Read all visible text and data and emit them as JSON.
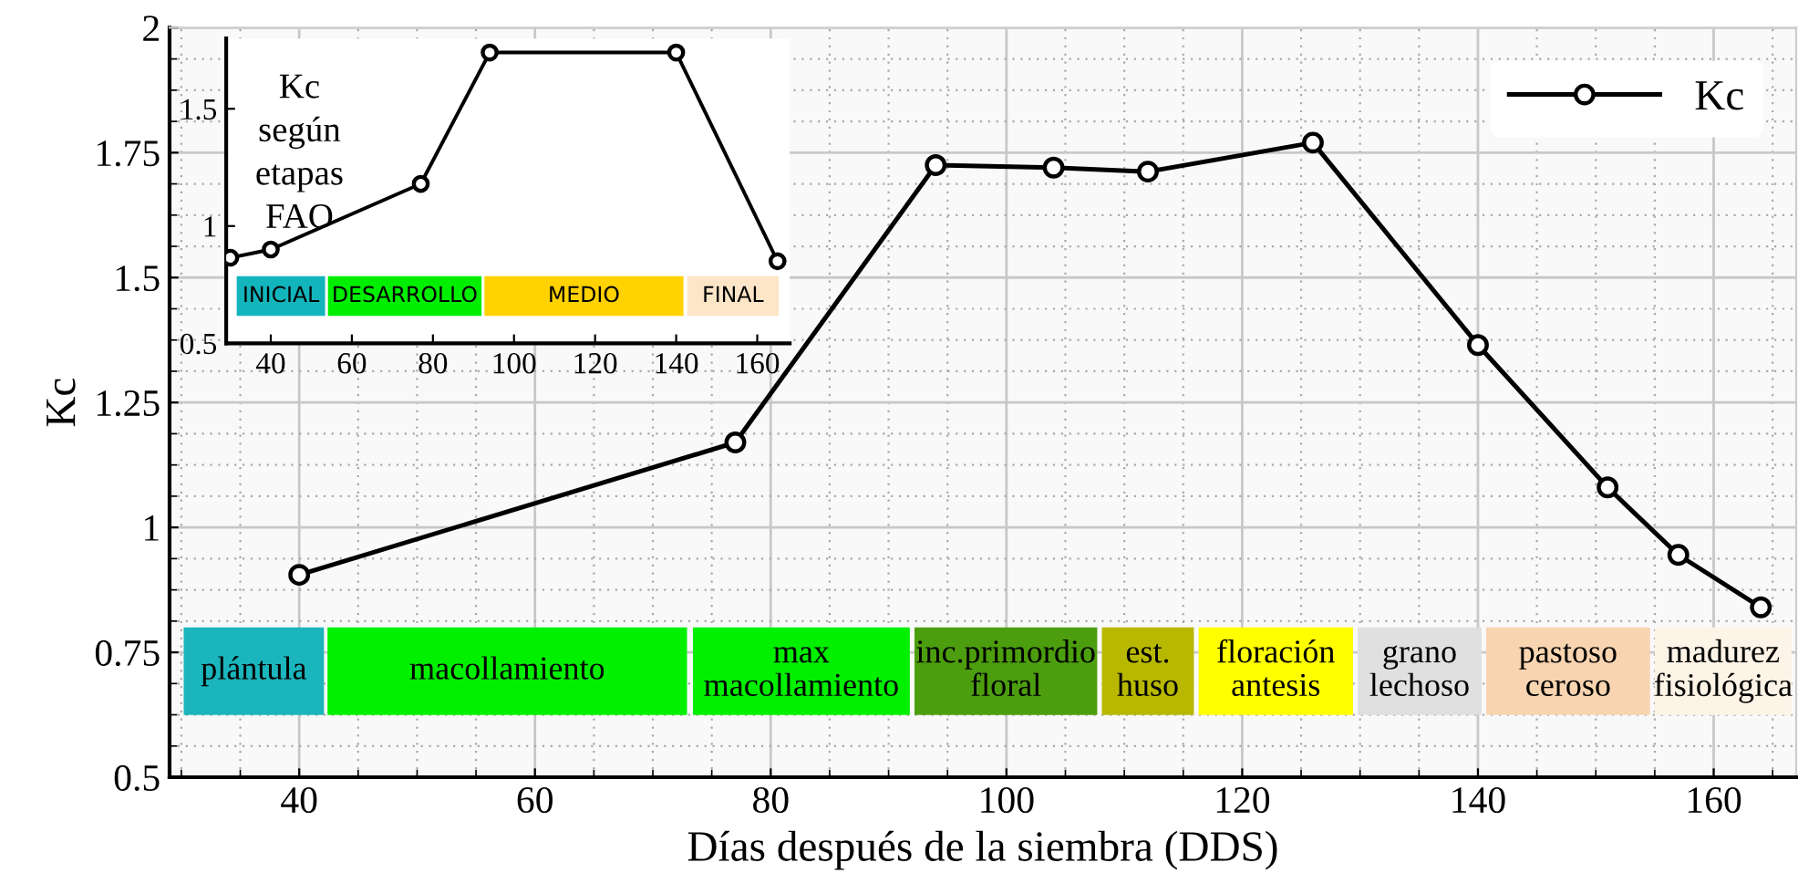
{
  "chart_data": [
    {
      "type": "line",
      "xlabel": "Días después de la siembra (DDS)",
      "ylabel": "Kc",
      "x": [
        40,
        77,
        94,
        104,
        112,
        126,
        140,
        151,
        157,
        164
      ],
      "series": [
        {
          "name": "Kc",
          "color": "#000000",
          "values": [
            0.905,
            1.17,
            1.725,
            1.72,
            1.712,
            1.77,
            1.365,
            1.08,
            0.945,
            0.84
          ]
        }
      ],
      "xlim": [
        29,
        167
      ],
      "xticks": [
        40,
        60,
        80,
        100,
        120,
        140,
        160
      ],
      "ylim": [
        0.5,
        2
      ],
      "yticks": [
        0.5,
        0.75,
        1,
        1.25,
        1.5,
        1.75,
        2
      ],
      "grid": true,
      "legend": "top right",
      "marker": "circle",
      "line_style": "solid",
      "bands": [
        {
          "axis": "x",
          "from": 30.2,
          "to": 42.1,
          "label": "plántula",
          "color": "#1ab5bd"
        },
        {
          "axis": "x",
          "from": 42.4,
          "to": 72.9,
          "label": "macollamiento",
          "color": "#00f000"
        },
        {
          "axis": "x",
          "from": 73.4,
          "to": 91.8,
          "label": "max\nmacollamiento",
          "color": "#00f000"
        },
        {
          "axis": "x",
          "from": 92.2,
          "to": 107.7,
          "label": "inc.primordio\nfloral",
          "color": "#4c9e0e"
        },
        {
          "axis": "x",
          "from": 108.1,
          "to": 115.9,
          "label": "est.\nhuso",
          "color": "#b8b800"
        },
        {
          "axis": "x",
          "from": 116.3,
          "to": 129.4,
          "label": "floración\nantesis",
          "color": "#ffff00"
        },
        {
          "axis": "x",
          "from": 129.8,
          "to": 140.3,
          "label": "grano\nlechoso",
          "color": "#e0e0e0"
        },
        {
          "axis": "x",
          "from": 140.7,
          "to": 154.6,
          "label": "pastoso\nceroso",
          "color": "#f8d4b0"
        },
        {
          "axis": "x",
          "from": 155.0,
          "to": 166.6,
          "label": "madurez\nfisiológica",
          "color": "#fdf3e6"
        }
      ]
    },
    {
      "type": "line",
      "annotations": [
        "Kc\nsegún\netapas\nFAO"
      ],
      "x": [
        30,
        40,
        77,
        94,
        140,
        165
      ],
      "series": [
        {
          "color": "#000000",
          "values": [
            0.865,
            0.9,
            1.18,
            1.74,
            1.74,
            0.85
          ]
        }
      ],
      "xlim": [
        29,
        168
      ],
      "xticks": [
        40,
        60,
        80,
        100,
        120,
        140,
        160
      ],
      "ylim": [
        0.5,
        1.8
      ],
      "yticks": [
        0.5,
        1,
        1.5
      ],
      "marker": "circle",
      "line_style": "solid",
      "bands": [
        {
          "axis": "x",
          "from": 31.6,
          "to": 53.4,
          "label": "INICIAL",
          "color": "#13b5bd"
        },
        {
          "axis": "x",
          "from": 54.1,
          "to": 92.0,
          "label": "DESARROLLO",
          "color": "#00ee00"
        },
        {
          "axis": "x",
          "from": 92.7,
          "to": 141.8,
          "label": "MEDIO",
          "color": "#ffd200"
        },
        {
          "axis": "x",
          "from": 142.7,
          "to": 165.3,
          "label": "FINAL",
          "color": "#fde5c8"
        }
      ]
    }
  ]
}
